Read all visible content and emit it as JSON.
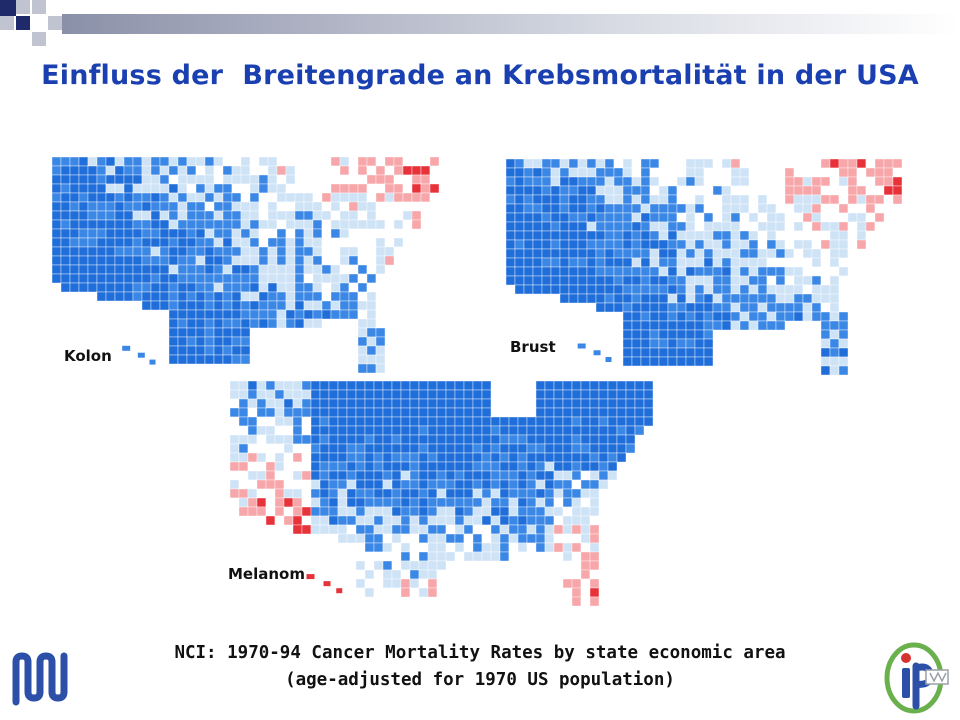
{
  "slide": {
    "title": "Einfluss der  Breitengrade an Krebsmortalität in der USA",
    "caption_line1": "NCI: 1970-94 Cancer Mortality Rates by state economic area",
    "caption_line2": "(age-adjusted for 1970 US population)"
  },
  "maps": {
    "kolon": {
      "label": "Kolon",
      "scheme": "north-east high"
    },
    "brust": {
      "label": "Brust",
      "scheme": "north-east high"
    },
    "melanom": {
      "label": "Melanom",
      "scheme": "south high"
    }
  },
  "colors": {
    "title": "#1a3fb0",
    "high": "#e8323a",
    "mid_high": "#f7a6a9",
    "low_light": "#cfe3f7",
    "low": "#3b87e6",
    "low_dark": "#1f6ed9",
    "deco_navy": "#1f2a6b",
    "deco_gray": "#c0c4d0"
  },
  "logos": {
    "left": "university-logo",
    "right": "institute-logo"
  }
}
